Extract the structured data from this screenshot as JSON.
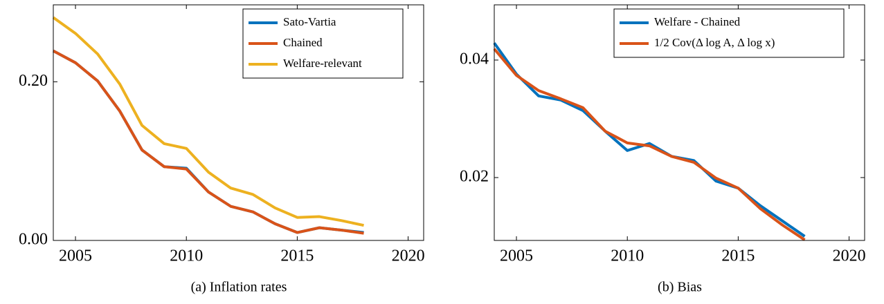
{
  "chart_data": [
    {
      "type": "line",
      "caption": "(a) Inflation rates",
      "x": [
        2004,
        2005,
        2006,
        2007,
        2008,
        2009,
        2010,
        2011,
        2012,
        2013,
        2014,
        2015,
        2016,
        2017,
        2018
      ],
      "series": [
        {
          "name": "Sato-Vartia",
          "color": "#0072bd",
          "values": [
            0.239,
            0.224,
            0.201,
            0.163,
            0.114,
            0.093,
            0.091,
            0.061,
            0.043,
            0.036,
            0.021,
            0.01,
            0.016,
            0.013,
            0.01
          ]
        },
        {
          "name": "Chained",
          "color": "#d95319",
          "values": [
            0.239,
            0.224,
            0.201,
            0.163,
            0.114,
            0.093,
            0.09,
            0.061,
            0.043,
            0.036,
            0.021,
            0.01,
            0.016,
            0.013,
            0.009
          ]
        },
        {
          "name": "Welfare-relevant",
          "color": "#edb120",
          "values": [
            0.281,
            0.261,
            0.235,
            0.197,
            0.145,
            0.122,
            0.116,
            0.086,
            0.066,
            0.058,
            0.041,
            0.029,
            0.03,
            0.025,
            0.019
          ]
        }
      ],
      "xlim": [
        2004,
        2020.7
      ],
      "xticks": [
        2005,
        2010,
        2015,
        2020
      ],
      "ylim": [
        0,
        0.297
      ],
      "yticks": [
        {
          "value": 0,
          "label": "0.00"
        },
        {
          "value": 0.2,
          "label": "0.20"
        }
      ],
      "legend": "upper right"
    },
    {
      "type": "line",
      "caption": "(b) Bias",
      "x": [
        2004,
        2005,
        2006,
        2007,
        2008,
        2009,
        2010,
        2011,
        2012,
        2013,
        2014,
        2015,
        2016,
        2017,
        2018
      ],
      "series": [
        {
          "name": "Welfare - Chained",
          "color": "#0072bd",
          "values": [
            0.0429,
            0.0376,
            0.0339,
            0.0332,
            0.0314,
            0.0279,
            0.0246,
            0.0258,
            0.0236,
            0.0229,
            0.0194,
            0.0182,
            0.0152,
            0.0126,
            0.01
          ]
        },
        {
          "name": "1/2 Cov(Δ log A, Δ log x)",
          "color": "#d95319",
          "values": [
            0.0419,
            0.0374,
            0.0348,
            0.0334,
            0.0319,
            0.0279,
            0.0259,
            0.0254,
            0.0236,
            0.0226,
            0.0199,
            0.0182,
            0.0147,
            0.0119,
            0.0094
          ]
        }
      ],
      "xlim": [
        2004,
        2020.7
      ],
      "xticks": [
        2005,
        2010,
        2015,
        2020
      ],
      "ylim": [
        0.0093,
        0.0494
      ],
      "yticks": [
        {
          "value": 0.02,
          "label": "0.02"
        },
        {
          "value": 0.04,
          "label": "0.04"
        }
      ],
      "legend": "upper right"
    }
  ]
}
